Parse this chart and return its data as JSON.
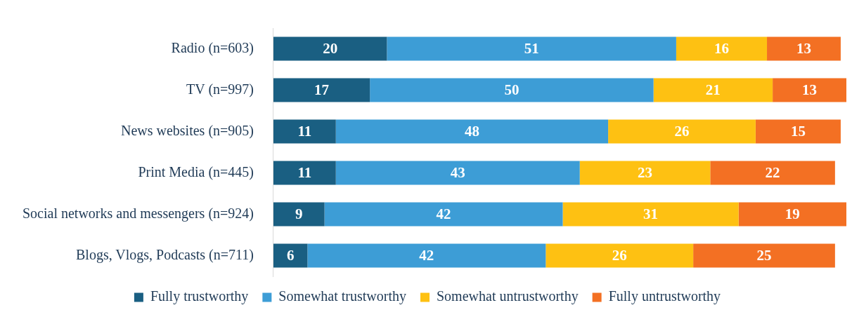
{
  "chart_data": {
    "type": "bar",
    "orientation": "horizontal",
    "stacked": true,
    "data_labels": true,
    "legend": "bottom",
    "categories": [
      "Radio (n=603)",
      "TV (n=997)",
      "News websites (n=905)",
      "Print Media (n=445)",
      "Social networks and messengers (n=924)",
      "Blogs, Vlogs, Podcasts (n=711)"
    ],
    "series": [
      {
        "name": "Fully trustworthy",
        "color": "#1a5f82",
        "values": [
          20,
          17,
          11,
          11,
          9,
          6
        ]
      },
      {
        "name": "Somewhat trustworthy",
        "color": "#3d9dd6",
        "values": [
          51,
          50,
          48,
          43,
          42,
          42
        ]
      },
      {
        "name": "Somewhat untrustworthy",
        "color": "#fec112",
        "values": [
          16,
          21,
          26,
          23,
          31,
          26
        ]
      },
      {
        "name": "Fully untrustworthy",
        "color": "#f37023",
        "values": [
          13,
          13,
          15,
          22,
          19,
          25
        ]
      }
    ]
  }
}
